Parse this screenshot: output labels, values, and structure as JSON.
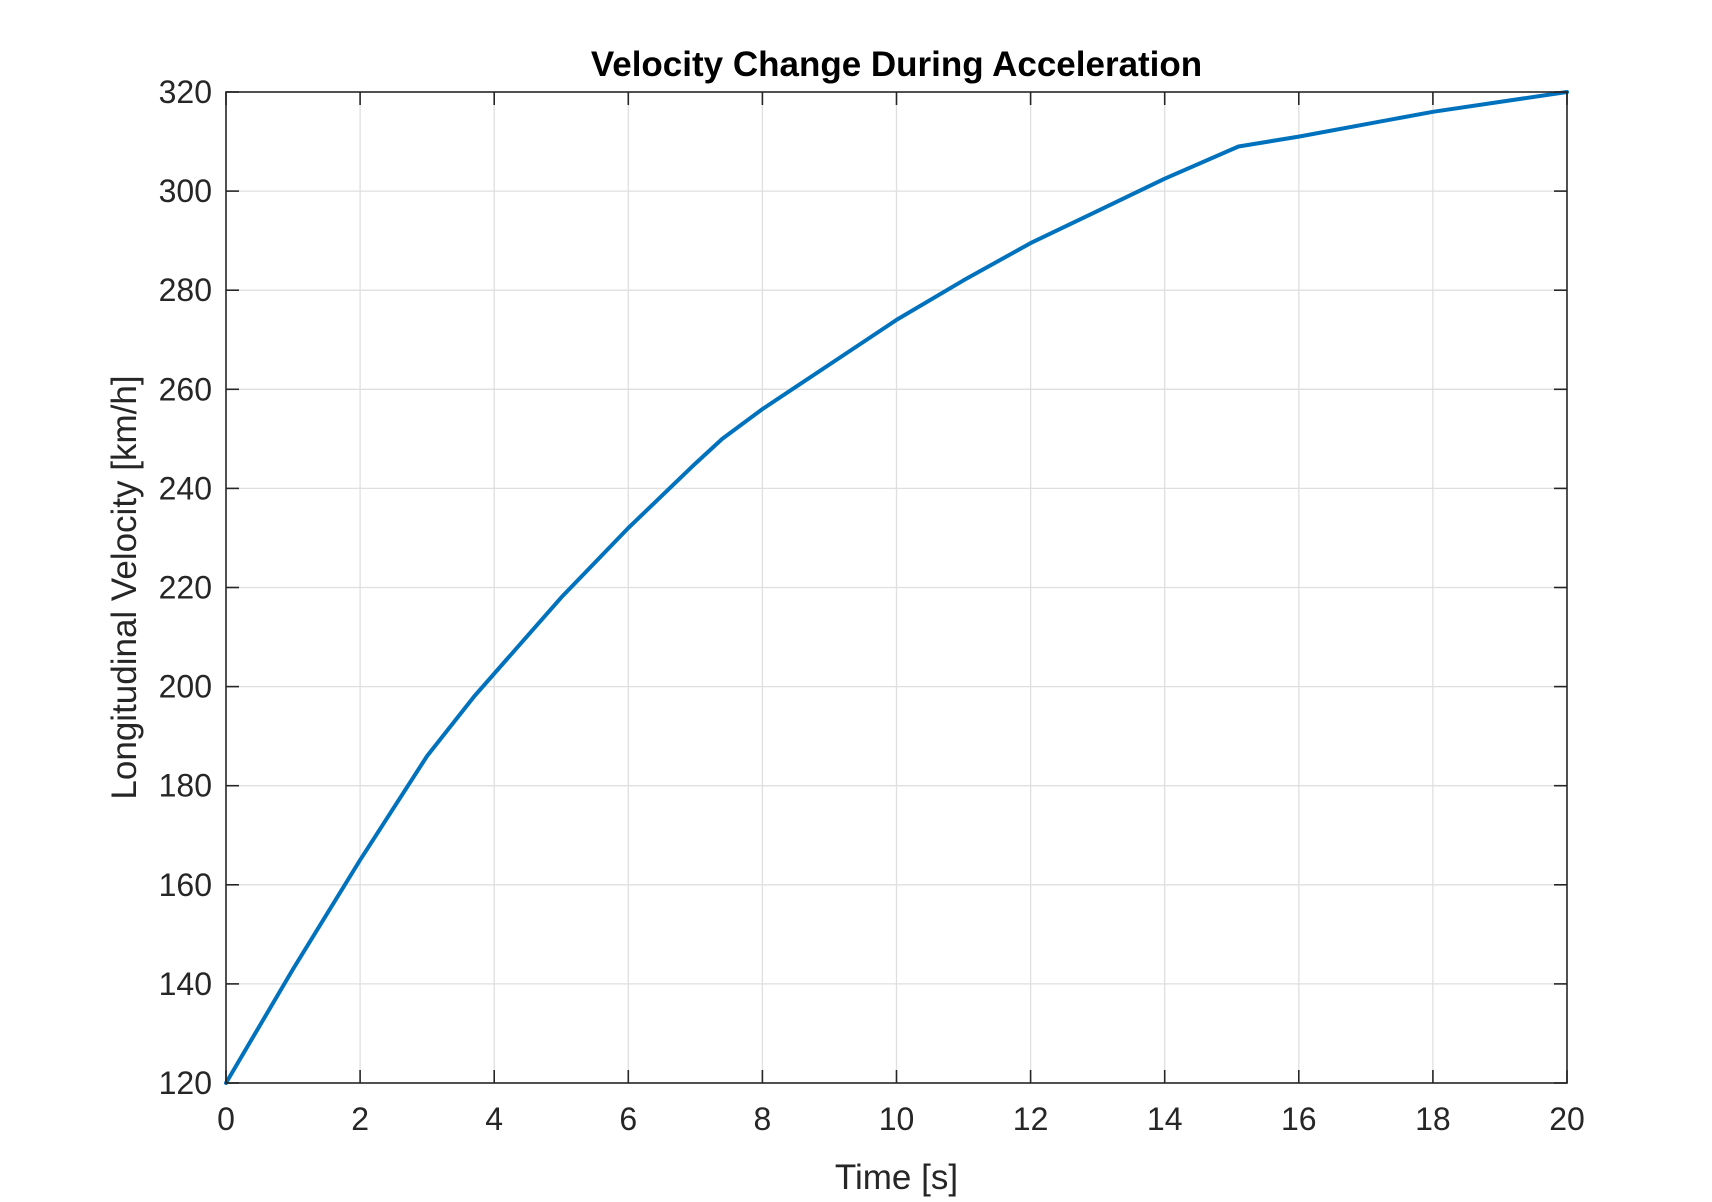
{
  "chart_data": {
    "type": "line",
    "title": "Velocity Change During Acceleration",
    "xlabel": "Time [s]",
    "ylabel": "Longitudinal Velocity [km/h]",
    "xlim": [
      0,
      20
    ],
    "ylim": [
      120,
      320
    ],
    "xticks": [
      0,
      2,
      4,
      6,
      8,
      10,
      12,
      14,
      16,
      18,
      20
    ],
    "yticks": [
      120,
      140,
      160,
      180,
      200,
      220,
      240,
      260,
      280,
      300,
      320
    ],
    "grid": true,
    "series": [
      {
        "color": "#0072BD",
        "x": [
          0,
          1,
          2,
          3,
          3.7,
          5,
          6,
          7,
          7.4,
          8,
          9,
          10,
          11,
          12,
          13,
          14,
          15.1,
          16,
          17,
          18,
          19,
          20
        ],
        "y": [
          120,
          143,
          165,
          186,
          198,
          218,
          232,
          245,
          250,
          256,
          265,
          274,
          282,
          289.5,
          296,
          302.5,
          309,
          311,
          313.5,
          316,
          318,
          320
        ]
      }
    ]
  }
}
